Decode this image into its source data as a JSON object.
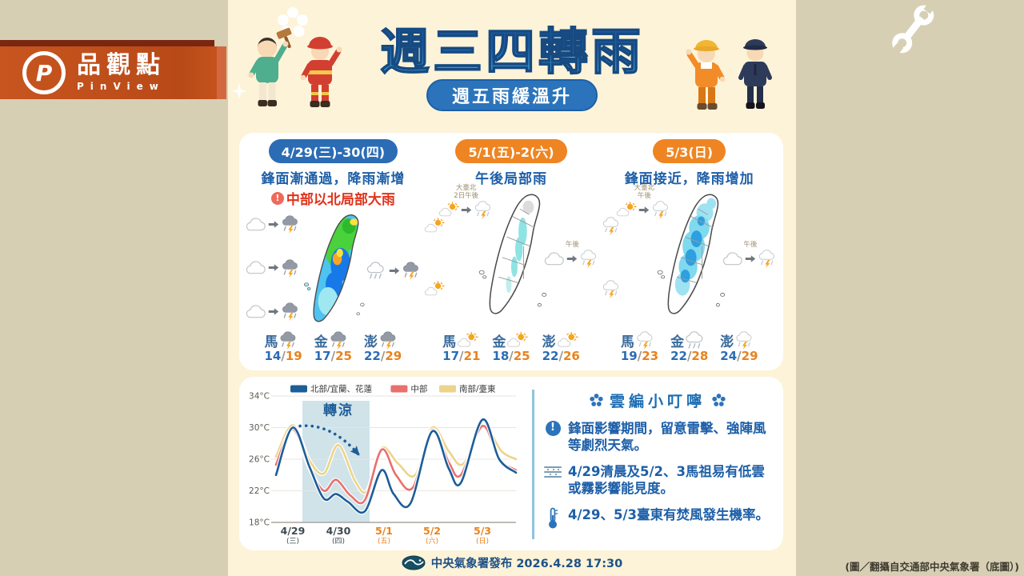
{
  "brand": {
    "name": "品觀點",
    "subname": "PinView",
    "banner_color": "#c8551f"
  },
  "header": {
    "title": "週三四轉雨",
    "subtitle": "週五雨緩溫升",
    "title_color": "#1b5fae",
    "subtitle_bg": "#2b74bb"
  },
  "panels": [
    {
      "date_label": "4/29(三)-30(四)",
      "accent": "#2b6cb5",
      "headline": "鋒面漸通過，降雨漸增",
      "warning": "中部以北局部大雨",
      "warning_color": "#e0331b",
      "map_style": "heavy",
      "top_note": null,
      "top_icons": [],
      "left_icons": [
        [
          "cloud",
          "storm"
        ],
        [
          "cloud",
          "storm"
        ],
        [
          "cloud",
          "storm"
        ]
      ],
      "right_note": null,
      "right_icons": [
        [
          "raincloud",
          "storm"
        ]
      ],
      "islands": [
        {
          "place": "馬",
          "icon": "storm",
          "low": "14",
          "high": "19"
        },
        {
          "place": "金",
          "icon": "storm",
          "low": "17",
          "high": "25"
        },
        {
          "place": "澎",
          "icon": "storm",
          "low": "22",
          "high": "29"
        }
      ]
    },
    {
      "date_label": "5/1(五)-2(六)",
      "accent": "#ee8522",
      "headline": "午後局部雨",
      "warning": null,
      "map_style": "light",
      "top_note": "大臺北\n2日午後",
      "top_icons": [
        [
          "suncloud",
          "lightstorm"
        ]
      ],
      "left_icons": [
        [
          "suncloud"
        ],
        [
          "suncloud"
        ]
      ],
      "right_note": "午後",
      "right_icons": [
        [
          "cloud",
          "lightstorm"
        ]
      ],
      "islands": [
        {
          "place": "馬",
          "icon": "suncloud",
          "low": "17",
          "high": "21"
        },
        {
          "place": "金",
          "icon": "suncloud",
          "low": "18",
          "high": "25"
        },
        {
          "place": "澎",
          "icon": "suncloud",
          "low": "22",
          "high": "26"
        }
      ]
    },
    {
      "date_label": "5/3(日)",
      "accent": "#ee8522",
      "headline": "鋒面接近，降雨增加",
      "warning": null,
      "map_style": "moderate",
      "top_note": "大臺北\n午後",
      "top_icons": [
        [
          "suncloud",
          "lightstorm"
        ]
      ],
      "left_icons": [
        [
          "lightstorm"
        ],
        [
          "lightstorm"
        ]
      ],
      "right_note": "午後",
      "right_icons": [
        [
          "cloud",
          "lightstorm"
        ]
      ],
      "islands": [
        {
          "place": "馬",
          "icon": "lightstorm",
          "low": "19",
          "high": "23"
        },
        {
          "place": "金",
          "icon": "raincloud",
          "low": "22",
          "high": "28"
        },
        {
          "place": "澎",
          "icon": "lightstorm",
          "low": "24",
          "high": "29"
        }
      ]
    }
  ],
  "chart_data": {
    "type": "line",
    "title": "",
    "ylabel": "°C",
    "ylim": [
      18,
      34
    ],
    "yticks": [
      34,
      30,
      26,
      22,
      18
    ],
    "xlim": [
      0,
      5
    ],
    "xticks": [
      {
        "day": 0.35,
        "label": "4/29",
        "sub": "(三)",
        "highlight": false
      },
      {
        "day": 1.3,
        "label": "4/30",
        "sub": "(四)",
        "highlight": false
      },
      {
        "day": 2.25,
        "label": "5/1",
        "sub": "(五)",
        "highlight": true
      },
      {
        "day": 3.25,
        "label": "5/2",
        "sub": "(六)",
        "highlight": true
      },
      {
        "day": 4.3,
        "label": "5/3",
        "sub": "(日)",
        "highlight": true
      }
    ],
    "highlight_color": "#e8821e",
    "cooling_band": [
      0.55,
      1.95
    ],
    "annotation": "轉涼",
    "legend_position": "top",
    "grid": true,
    "series": [
      {
        "name": "南部/臺東",
        "color": "#ecd48a",
        "points": [
          [
            0,
            26.3
          ],
          [
            0.35,
            30.3
          ],
          [
            0.7,
            25.8
          ],
          [
            1.0,
            24.2
          ],
          [
            1.3,
            27.8
          ],
          [
            1.65,
            23.2
          ],
          [
            1.9,
            22.0
          ],
          [
            2.2,
            27.4
          ],
          [
            2.55,
            25.4
          ],
          [
            2.9,
            24.0
          ],
          [
            3.25,
            30.0
          ],
          [
            3.6,
            27.0
          ],
          [
            3.9,
            25.4
          ],
          [
            4.3,
            30.3
          ],
          [
            4.7,
            27.0
          ],
          [
            5,
            26.0
          ]
        ]
      },
      {
        "name": "中部",
        "color": "#e9706e",
        "points": [
          [
            0,
            25.3
          ],
          [
            0.35,
            29.8
          ],
          [
            0.7,
            24.8
          ],
          [
            1.0,
            22.0
          ],
          [
            1.25,
            23.4
          ],
          [
            1.55,
            21.4
          ],
          [
            1.85,
            20.8
          ],
          [
            2.2,
            27.2
          ],
          [
            2.5,
            24.0
          ],
          [
            2.85,
            22.4
          ],
          [
            3.25,
            29.7
          ],
          [
            3.6,
            25.6
          ],
          [
            3.85,
            24.0
          ],
          [
            4.3,
            30.2
          ],
          [
            4.65,
            26.0
          ],
          [
            5,
            24.6
          ]
        ]
      },
      {
        "name": "北部/宜蘭、花蓮",
        "color": "#1d5d99",
        "points": [
          [
            0,
            24.0
          ],
          [
            0.35,
            30.0
          ],
          [
            0.7,
            25.0
          ],
          [
            1.0,
            21.0
          ],
          [
            1.25,
            21.6
          ],
          [
            1.5,
            20.6
          ],
          [
            1.85,
            19.4
          ],
          [
            2.2,
            24.6
          ],
          [
            2.45,
            21.6
          ],
          [
            2.8,
            20.4
          ],
          [
            3.25,
            29.5
          ],
          [
            3.6,
            24.8
          ],
          [
            3.85,
            23.0
          ],
          [
            4.3,
            31.0
          ],
          [
            4.65,
            26.0
          ],
          [
            5,
            24.3
          ]
        ]
      }
    ],
    "legend_order": [
      "北部/宜蘭、花蓮",
      "中部",
      "南部/臺東"
    ]
  },
  "tips": {
    "title": "雲編小叮嚀",
    "items": [
      {
        "icon": "alert",
        "text": "鋒面影響期間，留意雷擊、強陣風等劇烈天氣。"
      },
      {
        "icon": "fog",
        "text": "4/29清晨及5/2、3馬祖易有低雲或霧影響能見度。"
      },
      {
        "icon": "thermometer",
        "text": "4/29、5/3臺東有焚風發生機率。"
      }
    ]
  },
  "footer": {
    "text": "中央氣象署發布 2026.4.28 17:30"
  },
  "credit": "(圖／翻攝自交通部中央氣象署（底圖）)"
}
